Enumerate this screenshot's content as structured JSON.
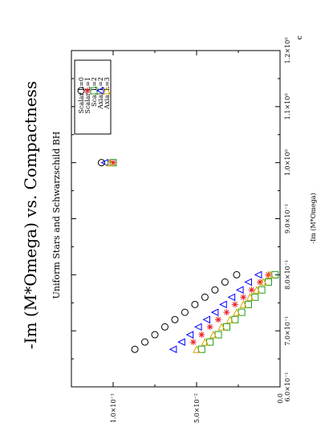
{
  "chart_data": {
    "type": "scatter",
    "title": "-Im (M*Omega) vs. Compactness",
    "subtitle": "Uniform Stars and Schwarzschild BH",
    "xlabel": "c",
    "ylabel": "-Im (M*Omega)",
    "xlim": [
      0.6,
      1.2
    ],
    "ylim": [
      0.0,
      0.125
    ],
    "x_ticks": [
      {
        "value": 0.6,
        "label": "6.0×10⁻¹"
      },
      {
        "value": 0.7,
        "label": "7.0×10⁻¹"
      },
      {
        "value": 0.8,
        "label": "8.0×10⁻¹"
      },
      {
        "value": 0.9,
        "label": "9.0×10⁻¹"
      },
      {
        "value": 1.0,
        "label": "1.0×10⁰"
      },
      {
        "value": 1.1,
        "label": "1.1×10⁰"
      },
      {
        "value": 1.2,
        "label": "1.2×10⁰"
      }
    ],
    "y_ticks": [
      {
        "value": 0.0,
        "label": "0.0"
      },
      {
        "value": 0.05,
        "label": "5.0×10⁻²"
      },
      {
        "value": 0.1,
        "label": "1.0×10⁻¹"
      }
    ],
    "orientation": "rotated 90° counter-clockwise",
    "legend_position": "top-left",
    "series": [
      {
        "name": "Scalar L=0",
        "marker": "circle",
        "color": "#000000",
        "x": [
          0.667,
          0.68,
          0.693,
          0.707,
          0.72,
          0.733,
          0.747,
          0.76,
          0.773,
          0.787,
          0.8,
          1.0
        ],
        "y": [
          0.087,
          0.081,
          0.075,
          0.069,
          0.063,
          0.057,
          0.051,
          0.045,
          0.039,
          0.033,
          0.026,
          0.107
        ]
      },
      {
        "name": "Scalar L=1",
        "marker": "star",
        "color": "#e8202a",
        "x": [
          0.68,
          0.693,
          0.707,
          0.72,
          0.733,
          0.747,
          0.76,
          0.773,
          0.787,
          0.8,
          1.0
        ],
        "y": [
          0.052,
          0.047,
          0.042,
          0.037,
          0.032,
          0.027,
          0.022,
          0.017,
          0.012,
          0.007,
          0.1
        ]
      },
      {
        "name": "Scal L=2",
        "marker": "square",
        "color": "#1a9c1a",
        "x": [
          0.667,
          0.68,
          0.693,
          0.707,
          0.72,
          0.733,
          0.747,
          0.76,
          0.773,
          0.787,
          0.8,
          1.0
        ],
        "y": [
          0.047,
          0.042,
          0.037,
          0.032,
          0.027,
          0.023,
          0.019,
          0.015,
          0.011,
          0.007,
          0.003,
          0.1
        ]
      },
      {
        "name": "Axial L=2",
        "marker": "triangle-left",
        "color": "#0000ff",
        "x": [
          0.667,
          0.68,
          0.693,
          0.707,
          0.72,
          0.733,
          0.747,
          0.76,
          0.773,
          0.787,
          0.8,
          1.0
        ],
        "y": [
          0.064,
          0.059,
          0.054,
          0.049,
          0.044,
          0.039,
          0.034,
          0.029,
          0.024,
          0.019,
          0.013,
          0.105
        ]
      },
      {
        "name": "Axial L=3",
        "marker": "triangle-up",
        "color": "#d4a900",
        "x": [
          0.667,
          0.68,
          0.693,
          0.707,
          0.72,
          0.733,
          0.747,
          0.76,
          0.773,
          0.787,
          0.8,
          1.0
        ],
        "y": [
          0.05,
          0.045,
          0.04,
          0.035,
          0.03,
          0.026,
          0.022,
          0.018,
          0.014,
          0.01,
          0.006,
          0.102
        ]
      }
    ]
  }
}
